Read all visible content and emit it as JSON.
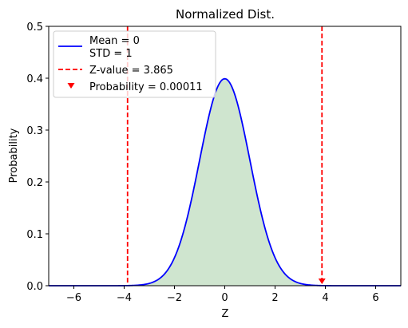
{
  "chart_data": {
    "type": "line",
    "title": "Normalized Dist.",
    "xlabel": "Z",
    "ylabel": "Probability",
    "xlim": [
      -7,
      7
    ],
    "ylim": [
      0,
      0.5
    ],
    "xticks": [
      -6,
      -4,
      -2,
      0,
      2,
      4,
      6
    ],
    "yticks": [
      0.0,
      0.1,
      0.2,
      0.3,
      0.4,
      0.5
    ],
    "xtick_labels": [
      "−6",
      "−4",
      "−2",
      "0",
      "2",
      "4",
      "6"
    ],
    "ytick_labels": [
      "0.0",
      "0.1",
      "0.2",
      "0.3",
      "0.4",
      "0.5"
    ],
    "grid": false,
    "legend_position": "upper-left",
    "curve": {
      "kind": "normal-pdf",
      "mean": 0,
      "std": 1,
      "color": "#0000ff",
      "fill_color": "#cfe5cf",
      "legend_label_lines": [
        "Mean = 0",
        "STD = 1"
      ]
    },
    "z_lines": {
      "values": [
        -3.865,
        3.865
      ],
      "color": "#ff0000",
      "legend_label": "Z-value = 3.865"
    },
    "probability_marker": {
      "x": 3.865,
      "y": 0,
      "color": "#ff0000",
      "legend_label": "Probability = 0.00011"
    }
  }
}
